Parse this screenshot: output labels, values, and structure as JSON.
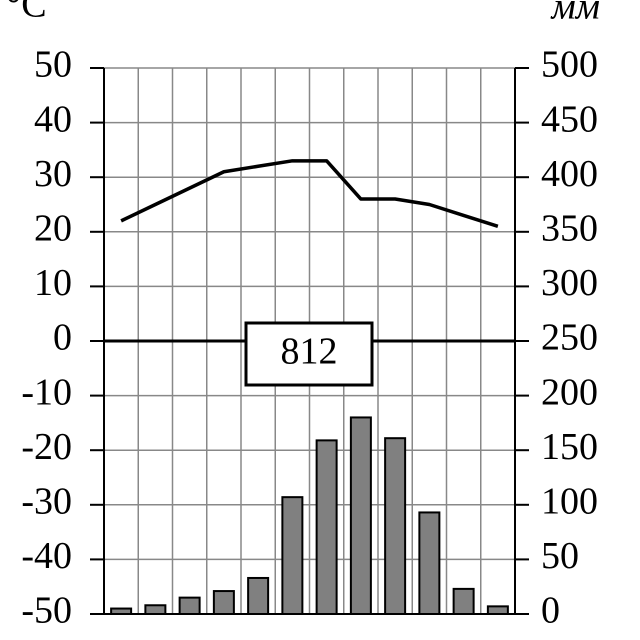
{
  "chart_data": {
    "type": "climograph",
    "y_label": "°C",
    "y2_label": "мм",
    "annotation": "812",
    "categories": [
      null,
      null,
      null,
      null,
      null,
      null,
      null,
      null,
      null,
      null,
      null,
      null
    ],
    "series": [
      {
        "type": "line",
        "color": "#000000",
        "values": [
          22,
          25,
          28,
          31,
          32,
          33,
          33,
          26,
          26,
          25,
          23,
          21
        ]
      },
      {
        "type": "bar",
        "axis": "y2",
        "color": "#808080",
        "values": [
          5,
          8,
          15,
          21,
          33,
          107,
          159,
          180,
          161,
          93,
          23,
          7
        ]
      }
    ],
    "ylim": [
      -50,
      50
    ],
    "yticks": [
      -50,
      -40,
      -30,
      -20,
      -10,
      0,
      10,
      20,
      30,
      40,
      50
    ],
    "y2lim": [
      0,
      500
    ],
    "y2ticks": [
      0,
      50,
      100,
      150,
      200,
      250,
      300,
      350,
      400,
      450,
      500
    ],
    "grid": true
  }
}
